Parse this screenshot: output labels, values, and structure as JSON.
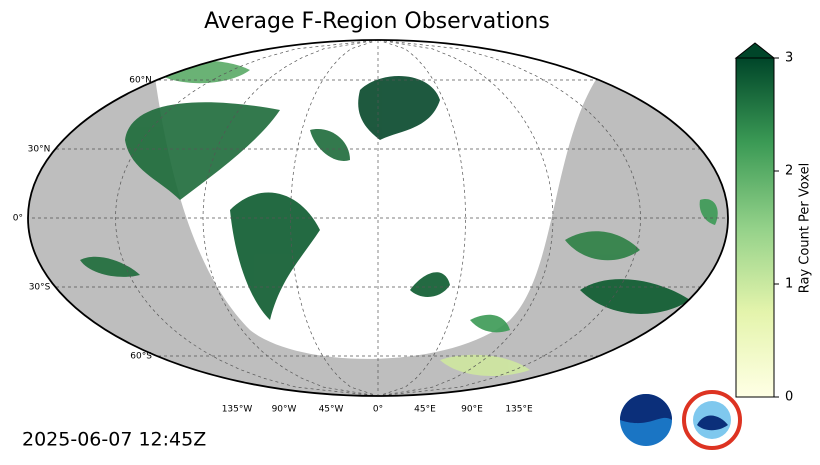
{
  "chart_data": {
    "type": "map",
    "title": "Average F-Region Observations",
    "timestamp": "2025-06-07 12:45Z",
    "lat_ticks": [
      {
        "value": 60,
        "label": "60°N"
      },
      {
        "value": 30,
        "label": "30°N"
      },
      {
        "value": 0,
        "label": "0°"
      },
      {
        "value": -30,
        "label": "30°S"
      },
      {
        "value": -60,
        "label": "60°S"
      }
    ],
    "lon_ticks": [
      {
        "value": -135,
        "label": "135°W"
      },
      {
        "value": -90,
        "label": "90°W"
      },
      {
        "value": -45,
        "label": "45°W"
      },
      {
        "value": 0,
        "label": "0°"
      },
      {
        "value": 45,
        "label": "45°E"
      },
      {
        "value": 90,
        "label": "90°E"
      },
      {
        "value": 135,
        "label": "135°E"
      }
    ],
    "colorbar": {
      "label": "Ray Count Per Voxel",
      "lim": [
        0,
        3
      ],
      "ticks": [
        0,
        1,
        2,
        3
      ]
    }
  }
}
